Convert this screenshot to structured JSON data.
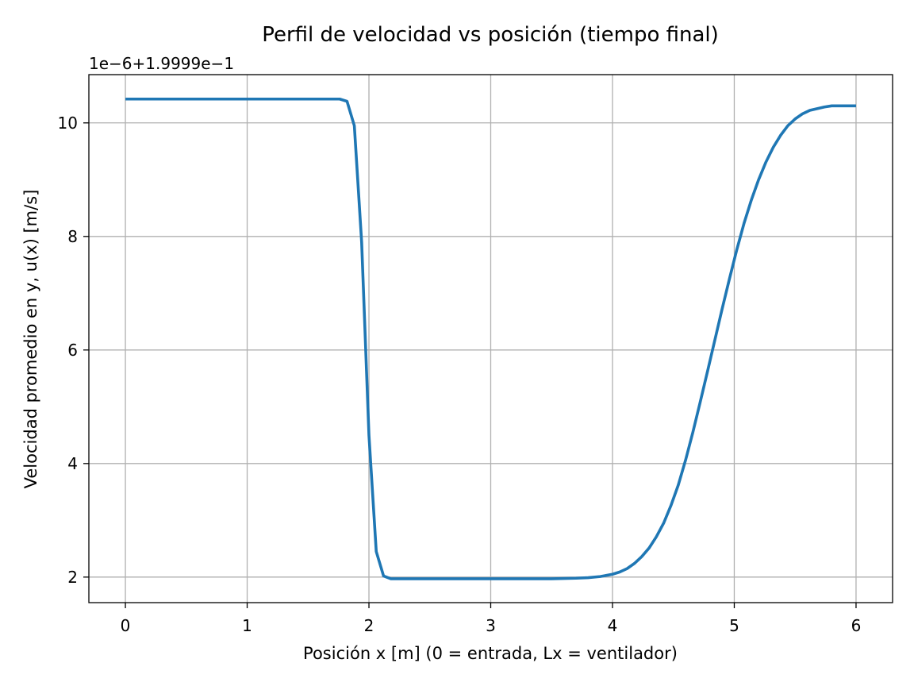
{
  "chart_data": {
    "type": "line",
    "title": "Perfil de velocidad vs posición (tiempo final)",
    "xlabel": "Posición x [m] (0 = entrada, Lx = ventilador)",
    "ylabel": "Velocidad promedio en y, u(x) [m/s]",
    "offset_label": "1e−6+1.9999e−1",
    "xlim": [
      -0.3,
      6.3
    ],
    "ylim": [
      1.55,
      10.85
    ],
    "x_ticks": [
      0,
      1,
      2,
      3,
      4,
      5,
      6
    ],
    "x_tick_labels": [
      "0",
      "1",
      "2",
      "3",
      "4",
      "5",
      "6"
    ],
    "y_ticks": [
      2,
      4,
      6,
      8,
      10
    ],
    "y_tick_labels": [
      "2",
      "4",
      "6",
      "8",
      "10"
    ],
    "grid": true,
    "line_color": "#1f77b4",
    "series": [
      {
        "x": [
          0,
          0.5,
          1.0,
          1.5,
          1.76,
          1.82,
          1.88,
          1.94,
          2.0,
          2.06,
          2.12,
          2.18,
          2.5,
          3.0,
          3.5,
          3.7,
          3.8,
          3.9,
          4.0,
          4.06,
          4.12,
          4.18,
          4.24,
          4.3,
          4.36,
          4.42,
          4.48,
          4.54,
          4.6,
          4.66,
          4.72,
          4.78,
          4.84,
          4.9,
          4.96,
          5.02,
          5.08,
          5.14,
          5.2,
          5.26,
          5.32,
          5.38,
          5.44,
          5.5,
          5.56,
          5.62,
          5.68,
          5.74,
          5.8,
          5.86,
          5.92,
          5.96,
          6.0
        ],
        "y": [
          10.42,
          10.42,
          10.42,
          10.42,
          10.42,
          10.38,
          9.95,
          7.9,
          4.5,
          2.45,
          2.02,
          1.97,
          1.97,
          1.97,
          1.97,
          1.98,
          1.99,
          2.01,
          2.05,
          2.09,
          2.15,
          2.24,
          2.36,
          2.51,
          2.71,
          2.95,
          3.26,
          3.62,
          4.06,
          4.55,
          5.08,
          5.62,
          6.17,
          6.72,
          7.25,
          7.76,
          8.23,
          8.64,
          9.0,
          9.31,
          9.57,
          9.78,
          9.95,
          10.07,
          10.16,
          10.22,
          10.25,
          10.28,
          10.3,
          10.3,
          10.3,
          10.3,
          10.3
        ]
      }
    ]
  }
}
